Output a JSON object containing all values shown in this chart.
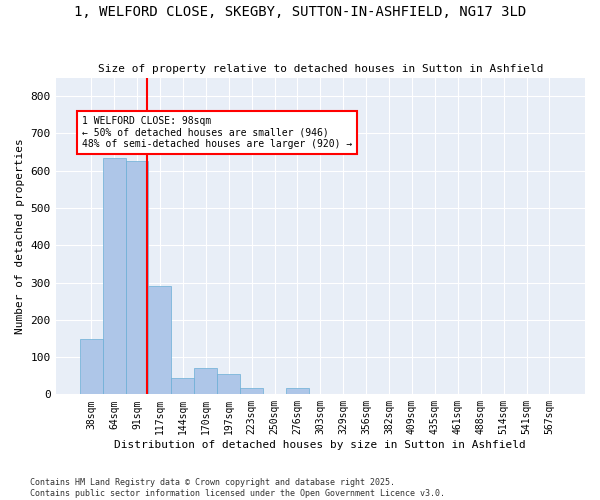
{
  "title": "1, WELFORD CLOSE, SKEGBY, SUTTON-IN-ASHFIELD, NG17 3LD",
  "subtitle": "Size of property relative to detached houses in Sutton in Ashfield",
  "xlabel": "Distribution of detached houses by size in Sutton in Ashfield",
  "ylabel": "Number of detached properties",
  "bin_labels": [
    "38sqm",
    "64sqm",
    "91sqm",
    "117sqm",
    "144sqm",
    "170sqm",
    "197sqm",
    "223sqm",
    "250sqm",
    "276sqm",
    "303sqm",
    "329sqm",
    "356sqm",
    "382sqm",
    "409sqm",
    "435sqm",
    "461sqm",
    "488sqm",
    "514sqm",
    "541sqm",
    "567sqm"
  ],
  "bar_values": [
    148,
    635,
    626,
    292,
    44,
    70,
    55,
    18,
    0,
    18,
    0,
    0,
    0,
    0,
    0,
    0,
    0,
    0,
    0,
    0,
    0
  ],
  "bar_color": "#aec6e8",
  "bar_edge_color": "#6aaed6",
  "property_line_label": "1 WELFORD CLOSE: 98sqm",
  "annotation_line1": "← 50% of detached houses are smaller (946)",
  "annotation_line2": "48% of semi-detached houses are larger (920) →",
  "annotation_box_color": "white",
  "annotation_box_edge_color": "red",
  "line_color": "red",
  "ylim": [
    0,
    850
  ],
  "yticks": [
    0,
    100,
    200,
    300,
    400,
    500,
    600,
    700,
    800
  ],
  "background_color": "#e8eef7",
  "footer_line1": "Contains HM Land Registry data © Crown copyright and database right 2025.",
  "footer_line2": "Contains public sector information licensed under the Open Government Licence v3.0."
}
